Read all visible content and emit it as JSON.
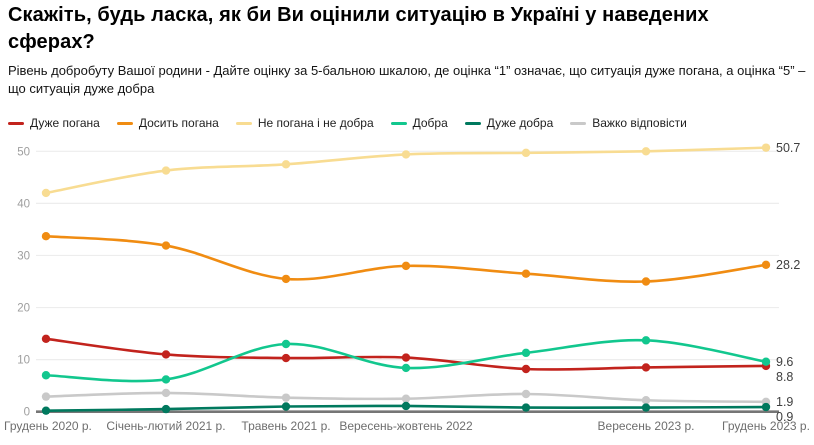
{
  "chart_data": {
    "type": "line",
    "title": "Скажіть, будь ласка, як би Ви оцінили ситуацію в Україні у наведених сферах?",
    "subtitle": "Рівень добробуту Вашої родини - Дайте оцінку за 5-бальною шкалою, де оцінка “1” означає, що ситуація дуже погана, а оцінка “5” – що ситуація дуже добра",
    "categories": [
      "Грудень 2020 р.",
      "Січень-лютий 2021 р.",
      "Травень 2021 р.",
      "Вересень-жовтень 2022",
      "",
      "Вересень 2023 р.",
      "Грудень 2023 р."
    ],
    "series": [
      {
        "name": "Дуже погана",
        "color": "#c2231d",
        "values": [
          14,
          11,
          10.3,
          10.4,
          8.2,
          8.5,
          8.8
        ],
        "end_label": "8.8"
      },
      {
        "name": "Досить погана",
        "color": "#f08c12",
        "values": [
          33.7,
          31.9,
          25.5,
          28,
          26.5,
          25,
          28.2
        ],
        "end_label": "28.2"
      },
      {
        "name": "Не погана і не добра",
        "color": "#f8dc92",
        "values": [
          42,
          46.3,
          47.5,
          49.4,
          49.7,
          50,
          50.7
        ],
        "end_label": "50.7"
      },
      {
        "name": "Добра",
        "color": "#12c78e",
        "values": [
          7,
          6.2,
          13,
          8.4,
          11.3,
          13.7,
          9.6
        ],
        "end_label": "9.6"
      },
      {
        "name": "Дуже добра",
        "color": "#00795e",
        "values": [
          0.2,
          0.5,
          1,
          1.1,
          0.8,
          0.8,
          0.9
        ],
        "end_label": "0.9"
      },
      {
        "name": "Важко відповісти",
        "color": "#c9c9c9",
        "values": [
          2.9,
          3.6,
          2.7,
          2.5,
          3.4,
          2.2,
          1.9
        ],
        "end_label": "1.9"
      }
    ],
    "y_ticks": [
      0,
      10,
      20,
      30,
      40,
      50
    ],
    "ylim": [
      0,
      52
    ],
    "grid": true,
    "legend_position": "top",
    "axis_colors": {
      "gridline": "#ededed",
      "baseline": "#767676",
      "tick_text": "#9e9e9e"
    }
  }
}
